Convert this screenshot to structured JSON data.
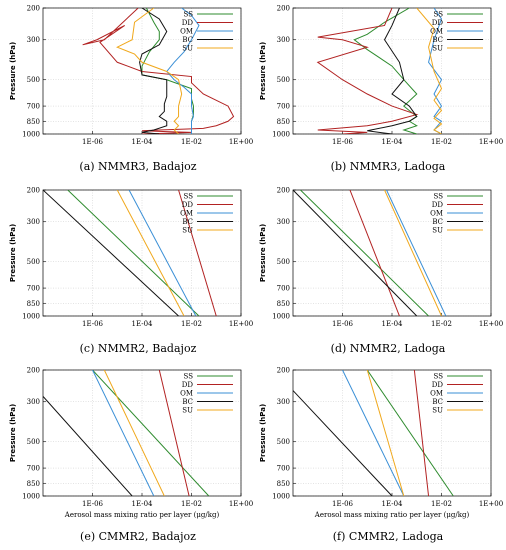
{
  "chart_data": [
    {
      "type": "line",
      "caption": "(a) NMMR3, Badajoz",
      "ylabel": "Pressure (hPa)",
      "xlabel": "",
      "xscale": "log",
      "xlim": [
        1e-08,
        1
      ],
      "yscale": "log",
      "ylim": [
        1000,
        200
      ],
      "xticks": [
        "1E-06",
        "1E-04",
        "1E-02",
        "1E+00"
      ],
      "yticks": [
        200,
        300,
        500,
        700,
        850,
        1000
      ],
      "grid": true,
      "legend": "top-right",
      "series": [
        {
          "name": "SS",
          "color": "#2e8b2e",
          "points": [
            [
              0.00015,
              200
            ],
            [
              0.0003,
              240
            ],
            [
              0.0005,
              270
            ],
            [
              0.0005,
              300
            ],
            [
              0.0002,
              350
            ],
            [
              0.0001,
              420
            ],
            [
              0.0001,
              470
            ],
            [
              0.001,
              500
            ],
            [
              0.01,
              560
            ],
            [
              0.01,
              640
            ],
            [
              0.012,
              700
            ],
            [
              0.012,
              780
            ],
            [
              0.01,
              850
            ],
            [
              0.01,
              920
            ],
            [
              0.01,
              950
            ],
            [
              0.01,
              1000
            ]
          ]
        },
        {
          "name": "DD",
          "color": "#b22222",
          "points": [
            [
              7e-05,
              200
            ],
            [
              3e-06,
              300
            ],
            [
              4e-07,
              320
            ],
            [
              1.5e-06,
              300
            ],
            [
              2e-05,
              250
            ],
            [
              2e-06,
              310
            ],
            [
              1e-05,
              400
            ],
            [
              0.0001,
              450
            ],
            [
              0.01,
              480
            ],
            [
              0.01,
              520
            ],
            [
              0.03,
              600
            ],
            [
              0.3,
              700
            ],
            [
              0.5,
              800
            ],
            [
              0.3,
              850
            ],
            [
              0.1,
              900
            ],
            [
              0.03,
              930
            ],
            [
              0.005,
              940
            ],
            [
              0.0005,
              950
            ],
            [
              0.0001,
              960
            ],
            [
              0.001,
              970
            ],
            [
              0.01,
              980
            ],
            [
              0.001,
              990
            ],
            [
              0.0001,
              1000
            ]
          ]
        },
        {
          "name": "OM",
          "color": "#3a8fd6",
          "points": [
            [
              0.004,
              200
            ],
            [
              0.01,
              220
            ],
            [
              0.02,
              250
            ],
            [
              0.01,
              300
            ],
            [
              0.005,
              350
            ],
            [
              0.002,
              400
            ],
            [
              0.001,
              450
            ],
            [
              0.002,
              500
            ],
            [
              0.005,
              550
            ],
            [
              0.01,
              600
            ],
            [
              0.01,
              700
            ],
            [
              0.012,
              800
            ],
            [
              0.01,
              850
            ],
            [
              0.01,
              950
            ],
            [
              0.01,
              1000
            ]
          ]
        },
        {
          "name": "BC",
          "color": "#111111",
          "points": [
            [
              0.0001,
              200
            ],
            [
              0.0005,
              230
            ],
            [
              0.001,
              270
            ],
            [
              0.0005,
              320
            ],
            [
              0.0001,
              360
            ],
            [
              8e-05,
              400
            ],
            [
              0.0001,
              470
            ],
            [
              0.001,
              500
            ],
            [
              0.001,
              550
            ],
            [
              0.001,
              620
            ],
            [
              0.0008,
              680
            ],
            [
              0.0008,
              750
            ],
            [
              0.0005,
              800
            ],
            [
              0.001,
              850
            ],
            [
              0.001,
              900
            ],
            [
              0.0003,
              950
            ],
            [
              0.0001,
              980
            ],
            [
              0.0005,
              1000
            ]
          ]
        },
        {
          "name": "SU",
          "color": "#f0a81c",
          "points": [
            [
              0.0003,
              200
            ],
            [
              5e-05,
              240
            ],
            [
              4e-05,
              300
            ],
            [
              1e-05,
              330
            ],
            [
              5e-05,
              360
            ],
            [
              0.0001,
              400
            ],
            [
              0.001,
              450
            ],
            [
              0.003,
              500
            ],
            [
              0.004,
              600
            ],
            [
              0.003,
              700
            ],
            [
              0.003,
              800
            ],
            [
              0.002,
              850
            ],
            [
              0.003,
              900
            ],
            [
              0.002,
              950
            ],
            [
              0.003,
              1000
            ]
          ]
        }
      ]
    },
    {
      "type": "line",
      "caption": "(b) NMMR3, Ladoga",
      "ylabel": "Pressure (hPa)",
      "xlabel": "",
      "xscale": "log",
      "xlim": [
        1e-08,
        1
      ],
      "yscale": "log",
      "ylim": [
        1000,
        200
      ],
      "xticks": [
        "1E-06",
        "1E-04",
        "1E-02",
        "1E+00"
      ],
      "yticks": [
        200,
        300,
        500,
        700,
        850,
        1000
      ],
      "grid": true,
      "legend": "top-right",
      "series": [
        {
          "name": "SS",
          "color": "#2e8b2e",
          "points": [
            [
              0.0005,
              200
            ],
            [
              5e-05,
              240
            ],
            [
              1e-05,
              280
            ],
            [
              3e-06,
              300
            ],
            [
              1e-05,
              340
            ],
            [
              0.0001,
              420
            ],
            [
              0.0003,
              500
            ],
            [
              0.001,
              600
            ],
            [
              0.0003,
              700
            ],
            [
              0.001,
              800
            ],
            [
              0.0005,
              850
            ],
            [
              0.001,
              900
            ],
            [
              0.0003,
              950
            ],
            [
              0.001,
              1000
            ]
          ]
        },
        {
          "name": "DD",
          "color": "#b22222",
          "points": [
            [
              0.0001,
              200
            ],
            [
              5e-05,
              250
            ],
            [
              1e-07,
              290
            ],
            [
              1e-06,
              300
            ],
            [
              1e-05,
              330
            ],
            [
              1e-07,
              400
            ],
            [
              1e-06,
              500
            ],
            [
              1e-05,
              600
            ],
            [
              0.0001,
              700
            ],
            [
              0.001,
              780
            ],
            [
              0.0001,
              850
            ],
            [
              1e-05,
              900
            ],
            [
              1e-07,
              950
            ],
            [
              1e-05,
              980
            ],
            [
              1e-06,
              1000
            ]
          ]
        },
        {
          "name": "OM",
          "color": "#3a8fd6",
          "points": [
            [
              0.005,
              200
            ],
            [
              0.01,
              230
            ],
            [
              0.005,
              300
            ],
            [
              0.003,
              400
            ],
            [
              0.01,
              500
            ],
            [
              0.005,
              600
            ],
            [
              0.01,
              700
            ],
            [
              0.005,
              800
            ],
            [
              0.01,
              850
            ],
            [
              0.005,
              950
            ],
            [
              0.01,
              1000
            ]
          ]
        },
        {
          "name": "BC",
          "color": "#111111",
          "points": [
            [
              0.0002,
              200
            ],
            [
              0.0001,
              250
            ],
            [
              5e-05,
              300
            ],
            [
              0.0002,
              400
            ],
            [
              0.0003,
              500
            ],
            [
              0.0001,
              600
            ],
            [
              0.0005,
              700
            ],
            [
              0.001,
              800
            ],
            [
              0.0005,
              850
            ],
            [
              0.0001,
              900
            ],
            [
              1e-05,
              960
            ],
            [
              0.0001,
              1000
            ]
          ]
        },
        {
          "name": "SU",
          "color": "#f0a81c",
          "points": [
            [
              0.001,
              200
            ],
            [
              0.005,
              260
            ],
            [
              0.003,
              330
            ],
            [
              0.005,
              450
            ],
            [
              0.01,
              560
            ],
            [
              0.005,
              650
            ],
            [
              0.01,
              740
            ],
            [
              0.005,
              820
            ],
            [
              0.01,
              880
            ],
            [
              0.005,
              950
            ],
            [
              0.01,
              1000
            ]
          ]
        }
      ]
    },
    {
      "type": "line",
      "caption": "(c) NMMR2, Badajoz",
      "ylabel": "Pressure (hPa)",
      "xlabel": "",
      "xscale": "log",
      "xlim": [
        1e-08,
        1
      ],
      "yscale": "log",
      "ylim": [
        1000,
        200
      ],
      "xticks": [
        "1E-06",
        "1E-04",
        "1E-02",
        "1E+00"
      ],
      "yticks": [
        200,
        300,
        500,
        700,
        850,
        1000
      ],
      "grid": true,
      "legend": "top-right",
      "series": [
        {
          "name": "SS",
          "color": "#2e8b2e",
          "points": [
            [
              1e-07,
              200
            ],
            [
              0.02,
              1000
            ]
          ]
        },
        {
          "name": "DD",
          "color": "#b22222",
          "points": [
            [
              0.003,
              200
            ],
            [
              0.1,
              1000
            ]
          ]
        },
        {
          "name": "OM",
          "color": "#3a8fd6",
          "points": [
            [
              3e-05,
              200
            ],
            [
              0.015,
              1000
            ]
          ]
        },
        {
          "name": "BC",
          "color": "#111111",
          "points": [
            [
              1e-08,
              200
            ],
            [
              0.003,
              1000
            ]
          ]
        },
        {
          "name": "SU",
          "color": "#f0a81c",
          "points": [
            [
              1e-05,
              200
            ],
            [
              0.005,
              1000
            ]
          ]
        }
      ]
    },
    {
      "type": "line",
      "caption": "(d) NMMR2, Ladoga",
      "ylabel": "Pressure (hPa)",
      "xlabel": "",
      "xscale": "log",
      "xlim": [
        1e-08,
        1
      ],
      "yscale": "log",
      "ylim": [
        1000,
        200
      ],
      "xticks": [
        "1E-06",
        "1E-04",
        "1E-02",
        "1E+00"
      ],
      "yticks": [
        200,
        300,
        500,
        700,
        850,
        1000
      ],
      "grid": true,
      "legend": "top-right",
      "series": [
        {
          "name": "SS",
          "color": "#2e8b2e",
          "points": [
            [
              2e-08,
              200
            ],
            [
              0.003,
              1000
            ]
          ]
        },
        {
          "name": "DD",
          "color": "#b22222",
          "points": [
            [
              2e-06,
              200
            ],
            [
              0.0002,
              1000
            ]
          ]
        },
        {
          "name": "OM",
          "color": "#3a8fd6",
          "points": [
            [
              6e-05,
              200
            ],
            [
              0.015,
              1000
            ]
          ]
        },
        {
          "name": "BC",
          "color": "#111111",
          "points": [
            [
              1e-08,
              200
            ],
            [
              0.001,
              1000
            ]
          ]
        },
        {
          "name": "SU",
          "color": "#f0a81c",
          "points": [
            [
              5e-05,
              200
            ],
            [
              0.01,
              1000
            ]
          ]
        }
      ]
    },
    {
      "type": "line",
      "caption": "(e) CMMR2, Badajoz",
      "ylabel": "Pressure (hPa)",
      "xlabel": "Aerosol mass mixing ratio per layer (μg/kg)",
      "xscale": "log",
      "xlim": [
        1e-08,
        1
      ],
      "yscale": "log",
      "ylim": [
        1000,
        200
      ],
      "xticks": [
        "1E-06",
        "1E-04",
        "1E-02",
        "1E+00"
      ],
      "yticks": [
        200,
        300,
        500,
        700,
        850,
        1000
      ],
      "grid": true,
      "legend": "top-right",
      "series": [
        {
          "name": "SS",
          "color": "#2e8b2e",
          "points": [
            [
              1e-06,
              200
            ],
            [
              0.05,
              1000
            ]
          ]
        },
        {
          "name": "DD",
          "color": "#b22222",
          "points": [
            [
              0.0005,
              200
            ],
            [
              0.008,
              1000
            ]
          ]
        },
        {
          "name": "OM",
          "color": "#3a8fd6",
          "points": [
            [
              1e-06,
              200
            ],
            [
              0.0003,
              1000
            ]
          ]
        },
        {
          "name": "BC",
          "color": "#111111",
          "points": [
            [
              1e-08,
              280
            ],
            [
              4e-05,
              1000
            ]
          ]
        },
        {
          "name": "SU",
          "color": "#f0a81c",
          "points": [
            [
              3e-06,
              200
            ],
            [
              0.0008,
              1000
            ]
          ]
        }
      ]
    },
    {
      "type": "line",
      "caption": "(f) CMMR2, Ladoga",
      "ylabel": "Pressure (hPa)",
      "xlabel": "Aerosol mass mixing ratio per layer (μg/kg)",
      "xscale": "log",
      "xlim": [
        1e-08,
        1
      ],
      "yscale": "log",
      "ylim": [
        1000,
        200
      ],
      "xticks": [
        "1E-06",
        "1E-04",
        "1E-02",
        "1E+00"
      ],
      "yticks": [
        200,
        300,
        500,
        700,
        850,
        1000
      ],
      "grid": true,
      "legend": "top-right",
      "series": [
        {
          "name": "SS",
          "color": "#2e8b2e",
          "points": [
            [
              1e-05,
              200
            ],
            [
              0.03,
              1000
            ]
          ]
        },
        {
          "name": "DD",
          "color": "#b22222",
          "points": [
            [
              0.0008,
              200
            ],
            [
              0.003,
              1000
            ]
          ]
        },
        {
          "name": "OM",
          "color": "#3a8fd6",
          "points": [
            [
              1e-06,
              200
            ],
            [
              0.0003,
              1000
            ]
          ]
        },
        {
          "name": "BC",
          "color": "#111111",
          "points": [
            [
              1e-08,
              260
            ],
            [
              0.0001,
              1000
            ]
          ]
        },
        {
          "name": "SU",
          "color": "#f0a81c",
          "points": [
            [
              1e-05,
              200
            ],
            [
              0.0003,
              1000
            ]
          ]
        }
      ]
    }
  ]
}
